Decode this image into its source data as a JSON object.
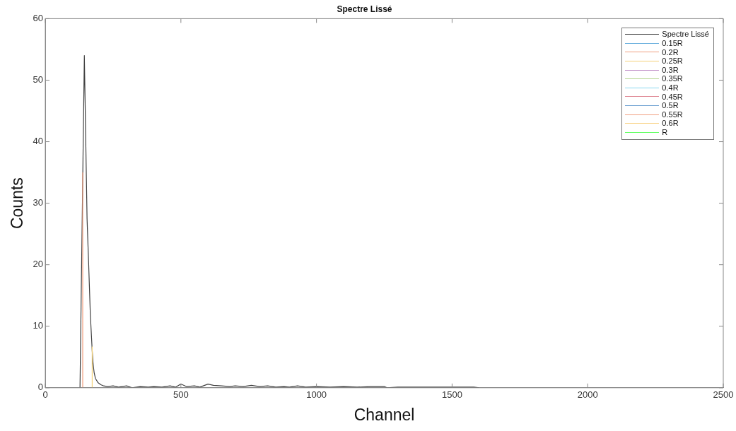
{
  "chart_data": {
    "type": "line",
    "title": "Spectre Lissé",
    "xlabel": "Channel",
    "ylabel": "Counts",
    "xlim": [
      0,
      2500
    ],
    "xticks": [
      0,
      500,
      1000,
      1500,
      2000,
      2500
    ],
    "ylim": [
      0,
      60
    ],
    "yticks": [
      0,
      10,
      20,
      30,
      40,
      50,
      60
    ],
    "grid": false,
    "legend": "top right",
    "marker": "none",
    "line_style": "solid",
    "series": [
      {
        "name": "Spectre Lissé",
        "color": "#404040",
        "x": [
          128,
          144,
          154,
          160,
          166,
          173,
          176,
          180,
          185,
          195,
          205,
          215,
          230,
          250,
          270,
          300,
          320,
          350,
          380,
          400,
          430,
          460,
          480,
          500,
          520,
          550,
          570,
          600,
          620,
          650,
          680,
          700,
          730,
          760,
          790,
          820,
          850,
          880,
          900,
          930,
          960,
          1000,
          1050,
          1100,
          1150,
          1200,
          1250,
          1260,
          1300,
          1400,
          1500,
          1580,
          1600
        ],
        "values": [
          0,
          54,
          27.5,
          20,
          12,
          6,
          4,
          2.5,
          1.5,
          0.8,
          0.5,
          0.3,
          0.2,
          0.3,
          0.1,
          0.3,
          0,
          0.2,
          0.1,
          0.2,
          0.1,
          0.3,
          0.1,
          0.6,
          0.2,
          0.3,
          0.1,
          0.6,
          0.4,
          0.3,
          0.2,
          0.3,
          0.2,
          0.4,
          0.2,
          0.3,
          0.1,
          0.2,
          0.1,
          0.3,
          0.1,
          0.2,
          0.1,
          0.2,
          0.1,
          0.2,
          0.2,
          0,
          0.1,
          0.1,
          0.1,
          0.1,
          0
        ]
      },
      {
        "name": "0.15R",
        "color": "#6ab0de"
      },
      {
        "name": "0.2R",
        "color": "#f0a080",
        "x": [
          138,
          138
        ],
        "values": [
          0,
          35
        ]
      },
      {
        "name": "0.25R",
        "color": "#f5d27a",
        "x": [
          173,
          173
        ],
        "values": [
          0,
          6.7
        ]
      },
      {
        "name": "0.3R",
        "color": "#c08fc8"
      },
      {
        "name": "0.35R",
        "color": "#b5d58f"
      },
      {
        "name": "0.4R",
        "color": "#8ad8f0"
      },
      {
        "name": "0.45R",
        "color": "#e08a96"
      },
      {
        "name": "0.5R",
        "color": "#6a9ed0"
      },
      {
        "name": "0.55R",
        "color": "#f0a080"
      },
      {
        "name": "0.6R",
        "color": "#f8d080"
      },
      {
        "name": "R",
        "color": "#66ff66"
      }
    ]
  }
}
